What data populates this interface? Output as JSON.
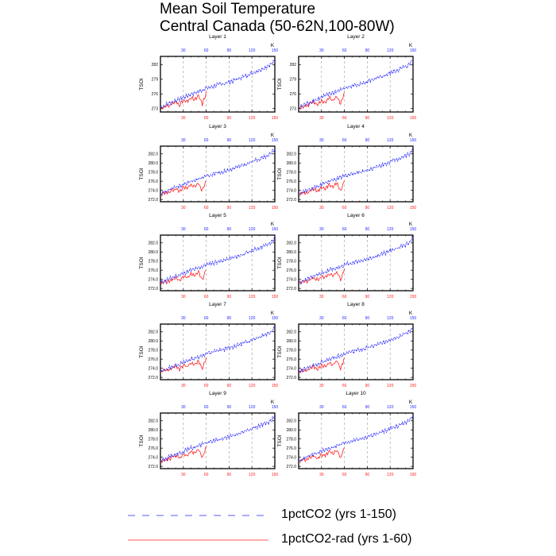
{
  "title_line1": "Mean Soil Temperature",
  "title_line2": "Central Canada (50-62N,100-80W)",
  "colors": {
    "blue": "#1f1fff",
    "red": "#ff2020",
    "grid": "#999999"
  },
  "chart_data": {
    "type": "line",
    "ylabel": "TSOI",
    "top_axis_unit": "K",
    "xlim": [
      0,
      150
    ],
    "x_ticks": [
      30,
      60,
      90,
      120,
      150
    ],
    "legend": [
      {
        "label": "1pctCO2 (yrs 1-150)",
        "color": "#1f1fff",
        "style": "dashed"
      },
      {
        "label": "1pctCO2-rad (yrs 1-60)",
        "color": "#ff2020",
        "style": "solid"
      }
    ],
    "series_template": [
      {
        "name": "1pctCO2 (yrs 1-150)",
        "x": [
          1,
          5,
          10,
          15,
          20,
          25,
          30,
          35,
          40,
          45,
          50,
          55,
          60,
          65,
          70,
          75,
          80,
          85,
          90,
          95,
          100,
          105,
          110,
          115,
          120,
          125,
          130,
          135,
          140,
          145,
          150
        ],
        "values": [
          273.3,
          273.6,
          274.0,
          274.3,
          274.7,
          274.9,
          275.3,
          275.6,
          276.0,
          276.2,
          276.5,
          276.8,
          277.2,
          277.4,
          277.6,
          277.9,
          278.0,
          278.2,
          278.5,
          278.7,
          279.0,
          279.3,
          279.6,
          279.9,
          280.3,
          280.6,
          280.9,
          281.3,
          281.6,
          282.0,
          283.2
        ]
      },
      {
        "name": "1pctCO2-rad (yrs 1-60)",
        "x": [
          1,
          5,
          10,
          15,
          20,
          25,
          30,
          35,
          40,
          45,
          50,
          55,
          60
        ],
        "values": [
          273.0,
          273.5,
          273.4,
          274.0,
          274.3,
          273.8,
          274.6,
          274.4,
          275.2,
          274.8,
          275.6,
          273.9,
          276.2
        ]
      }
    ],
    "panels": [
      {
        "title": "Layer 1",
        "yticks": [
          "273",
          "276",
          "279",
          "282"
        ],
        "ytick_values": [
          273,
          276,
          279,
          282
        ],
        "ylim": [
          272.3,
          283.7
        ]
      },
      {
        "title": "Layer 2",
        "yticks": [
          "273",
          "276",
          "279",
          "282"
        ],
        "ytick_values": [
          273,
          276,
          279,
          282
        ],
        "ylim": [
          272.3,
          283.7
        ]
      },
      {
        "title": "Layer 3",
        "yticks": [
          "272.0",
          "274.0",
          "276.0",
          "278.0",
          "280.0",
          "282.0"
        ],
        "ytick_values": [
          272,
          274,
          276,
          278,
          280,
          282
        ],
        "ylim": [
          271.5,
          283.7
        ]
      },
      {
        "title": "Layer 4",
        "yticks": [
          "272.0",
          "274.0",
          "276.0",
          "278.0",
          "280.0",
          "282.0"
        ],
        "ytick_values": [
          272,
          274,
          276,
          278,
          280,
          282
        ],
        "ylim": [
          271.5,
          283.7
        ]
      },
      {
        "title": "Layer 5",
        "yticks": [
          "272.0",
          "274.0",
          "276.0",
          "278.0",
          "280.0",
          "282.0"
        ],
        "ytick_values": [
          272,
          274,
          276,
          278,
          280,
          282
        ],
        "ylim": [
          271.5,
          283.7
        ]
      },
      {
        "title": "Layer 6",
        "yticks": [
          "272.0",
          "274.0",
          "276.0",
          "278.0",
          "280.0",
          "282.0"
        ],
        "ytick_values": [
          272,
          274,
          276,
          278,
          280,
          282
        ],
        "ylim": [
          271.5,
          283.7
        ]
      },
      {
        "title": "Layer 7",
        "yticks": [
          "272.0",
          "274.0",
          "276.0",
          "278.0",
          "280.0",
          "282.0"
        ],
        "ytick_values": [
          272,
          274,
          276,
          278,
          280,
          282
        ],
        "ylim": [
          271.5,
          283.7
        ]
      },
      {
        "title": "Layer 8",
        "yticks": [
          "272.0",
          "274.0",
          "276.0",
          "278.0",
          "280.0",
          "282.0"
        ],
        "ytick_values": [
          272,
          274,
          276,
          278,
          280,
          282
        ],
        "ylim": [
          271.5,
          283.7
        ]
      },
      {
        "title": "Layer 9",
        "yticks": [
          "272.0",
          "274.0",
          "276.0",
          "278.0",
          "280.0",
          "282.0"
        ],
        "ytick_values": [
          272,
          274,
          276,
          278,
          280,
          282
        ],
        "ylim": [
          271.5,
          283.7
        ]
      },
      {
        "title": "Layer 10",
        "yticks": [
          "272.0",
          "274.0",
          "276.0",
          "278.0",
          "280.0",
          "282.0"
        ],
        "ytick_values": [
          272,
          274,
          276,
          278,
          280,
          282
        ],
        "ylim": [
          271.5,
          283.7
        ]
      }
    ]
  }
}
